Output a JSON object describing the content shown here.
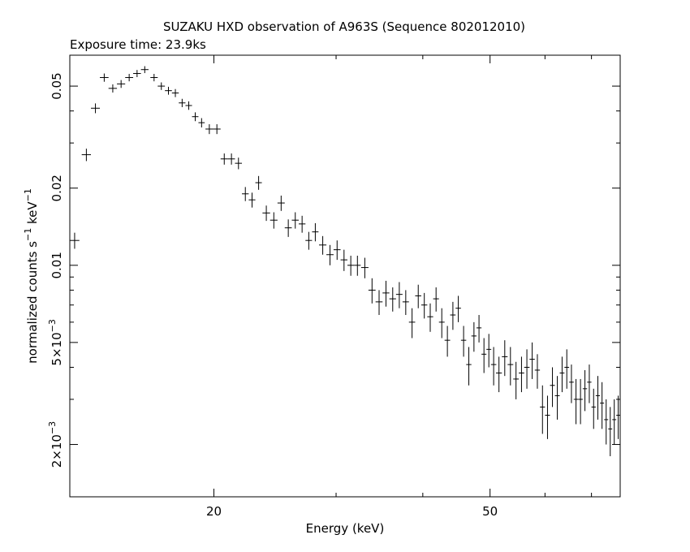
{
  "chart_data": {
    "type": "scatter",
    "title": "SUZAKU HXD observation of A963S (Sequence 802012010)",
    "subtitle": "Exposure time: 23.9ks",
    "xlabel": "Energy (keV)",
    "ylabel": "normalized counts s^-1 keV^-1",
    "ylabel_parts": {
      "main": "normalized counts s",
      "exp1": "−1",
      "mid": " keV",
      "exp2": "−1"
    },
    "x_scale": "log",
    "y_scale": "log",
    "xlim": [
      12.4,
      77
    ],
    "ylim": [
      0.00125,
      0.066
    ],
    "grid": false,
    "x_ticks_major": [
      {
        "value": 20,
        "label": "20"
      },
      {
        "value": 50,
        "label": "50"
      }
    ],
    "x_ticks_minor": [
      30,
      40,
      60,
      70
    ],
    "y_ticks_major": [
      {
        "value": 0.05,
        "label": "0.05"
      },
      {
        "value": 0.02,
        "label": "0.02"
      },
      {
        "value": 0.01,
        "label": "0.01"
      },
      {
        "value": 0.005,
        "label": "5×10",
        "exp": "−3"
      },
      {
        "value": 0.002,
        "label": "2×10",
        "exp": "−3"
      }
    ],
    "y_ticks_minor": [
      0.04,
      0.03,
      0.009,
      0.008,
      0.007,
      0.006,
      0.004,
      0.003
    ],
    "series": [
      {
        "x": [
          12.6,
          13.1,
          13.5,
          13.9,
          14.3,
          14.7,
          15.1,
          15.5,
          15.9,
          16.4,
          16.8,
          17.2,
          17.6,
          18.0,
          18.4,
          18.8,
          19.2,
          19.7,
          20.2,
          20.7,
          21.2,
          21.7,
          22.2,
          22.7,
          23.2,
          23.8,
          24.4,
          25.0,
          25.6,
          26.2,
          26.8,
          27.4,
          28.0,
          28.7,
          29.4,
          30.1,
          30.8,
          31.5,
          32.2,
          33.0,
          33.8,
          34.6,
          35.4,
          36.2,
          37.0,
          37.8,
          38.6,
          39.4,
          40.2,
          41.0,
          41.8,
          42.6,
          43.4,
          44.2,
          45.0,
          45.8,
          46.6,
          47.4,
          48.2,
          49.0,
          49.8,
          50.6,
          51.5,
          52.5,
          53.5,
          54.5,
          55.5,
          56.5,
          57.5,
          58.5,
          59.5,
          60.5,
          61.5,
          62.5,
          63.5,
          64.5,
          65.5,
          66.5,
          67.5,
          68.5,
          69.5,
          70.5,
          71.5,
          72.5,
          73.5,
          74.5,
          75.5,
          76.5
        ],
        "y": [
          0.0125,
          0.027,
          0.041,
          0.054,
          0.049,
          0.051,
          0.054,
          0.056,
          0.058,
          0.054,
          0.05,
          0.048,
          0.047,
          0.043,
          0.042,
          0.038,
          0.036,
          0.034,
          0.034,
          0.026,
          0.026,
          0.025,
          0.019,
          0.018,
          0.021,
          0.016,
          0.015,
          0.0175,
          0.014,
          0.015,
          0.0145,
          0.0125,
          0.0135,
          0.012,
          0.011,
          0.0115,
          0.0105,
          0.01,
          0.01,
          0.0098,
          0.008,
          0.0072,
          0.0078,
          0.0074,
          0.0077,
          0.0072,
          0.006,
          0.0076,
          0.007,
          0.0063,
          0.0074,
          0.006,
          0.0051,
          0.0064,
          0.0068,
          0.0051,
          0.0041,
          0.0053,
          0.0057,
          0.0045,
          0.0047,
          0.0041,
          0.0038,
          0.0044,
          0.0041,
          0.0036,
          0.0038,
          0.004,
          0.0043,
          0.0039,
          0.0028,
          0.0026,
          0.0034,
          0.0031,
          0.0038,
          0.004,
          0.0035,
          0.003,
          0.003,
          0.0033,
          0.0035,
          0.0028,
          0.0031,
          0.0029,
          0.0025,
          0.0023,
          0.0025,
          0.0026
        ],
        "xerr": [
          0.2,
          0.2,
          0.2,
          0.2,
          0.2,
          0.2,
          0.2,
          0.2,
          0.2,
          0.2,
          0.2,
          0.2,
          0.2,
          0.2,
          0.2,
          0.2,
          0.2,
          0.25,
          0.25,
          0.25,
          0.25,
          0.25,
          0.25,
          0.25,
          0.25,
          0.3,
          0.3,
          0.3,
          0.3,
          0.3,
          0.3,
          0.3,
          0.3,
          0.35,
          0.35,
          0.35,
          0.35,
          0.35,
          0.35,
          0.4,
          0.4,
          0.4,
          0.4,
          0.4,
          0.4,
          0.4,
          0.4,
          0.4,
          0.4,
          0.4,
          0.4,
          0.4,
          0.4,
          0.4,
          0.4,
          0.4,
          0.4,
          0.4,
          0.4,
          0.4,
          0.4,
          0.45,
          0.5,
          0.5,
          0.5,
          0.5,
          0.5,
          0.5,
          0.5,
          0.5,
          0.5,
          0.5,
          0.5,
          0.5,
          0.5,
          0.5,
          0.5,
          0.5,
          0.5,
          0.5,
          0.5,
          0.5,
          0.5,
          0.5,
          0.5,
          0.5,
          0.5,
          0.5
        ],
        "yerr": [
          0.0009,
          0.0015,
          0.0018,
          0.002,
          0.0018,
          0.0018,
          0.0018,
          0.0018,
          0.0018,
          0.0018,
          0.0017,
          0.0017,
          0.0017,
          0.0016,
          0.0016,
          0.0015,
          0.0015,
          0.0015,
          0.0015,
          0.0013,
          0.0013,
          0.0013,
          0.0012,
          0.0012,
          0.0013,
          0.0011,
          0.0011,
          0.0012,
          0.0011,
          0.0011,
          0.0011,
          0.001,
          0.0011,
          0.001,
          0.001,
          0.001,
          0.001,
          0.0009,
          0.0009,
          0.0009,
          0.0009,
          0.0008,
          0.0009,
          0.0008,
          0.0009,
          0.0008,
          0.0008,
          0.0008,
          0.0008,
          0.0008,
          0.0008,
          0.0008,
          0.0007,
          0.0008,
          0.0008,
          0.0007,
          0.0007,
          0.0007,
          0.0007,
          0.0007,
          0.0007,
          0.0007,
          0.0006,
          0.0007,
          0.0007,
          0.0006,
          0.0006,
          0.0007,
          0.0007,
          0.0006,
          0.0006,
          0.0005,
          0.0006,
          0.0006,
          0.0006,
          0.0007,
          0.0006,
          0.0006,
          0.0006,
          0.0006,
          0.0006,
          0.0005,
          0.0006,
          0.0006,
          0.0005,
          0.0005,
          0.0005,
          0.0005
        ]
      }
    ]
  }
}
